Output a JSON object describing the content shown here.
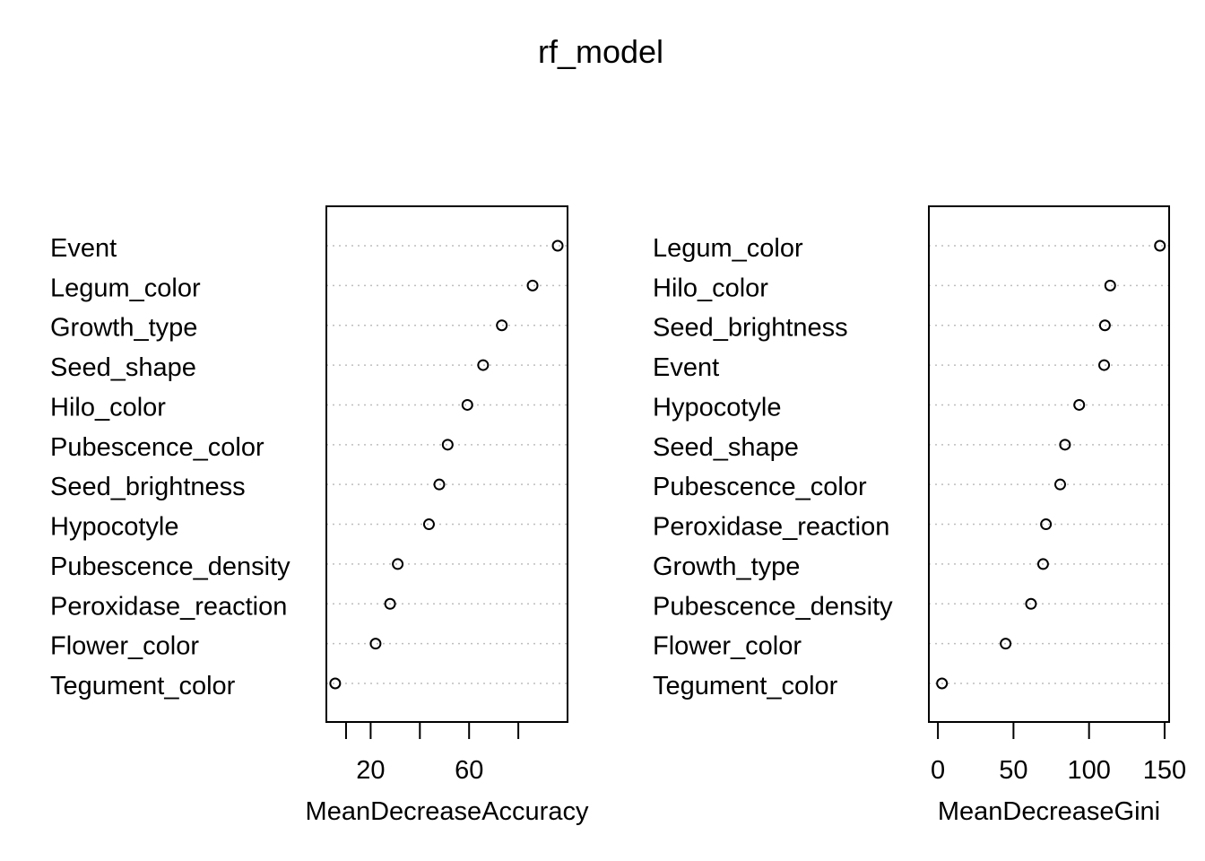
{
  "title": "rf_model",
  "chart_data": [
    {
      "type": "scatter",
      "xlabel": "MeanDecreaseAccuracy",
      "ylabel": "",
      "xlim": [
        2,
        100
      ],
      "xticks": [
        10,
        20,
        40,
        60,
        80
      ],
      "xtick_labels": [
        "20",
        "60"
      ],
      "xtick_label_values": [
        20,
        60
      ],
      "grid": "dotted-horizontal",
      "categories": [
        "Event",
        "Legum_color",
        "Growth_type",
        "Seed_shape",
        "Hilo_color",
        "Pubescence_color",
        "Seed_brightness",
        "Hypocotyle",
        "Pubescence_density",
        "Peroxidase_reaction",
        "Flower_color",
        "Tegument_color"
      ],
      "values": [
        96.0,
        85.8,
        73.3,
        65.7,
        59.3,
        51.3,
        47.9,
        43.7,
        31.0,
        27.9,
        22.0,
        5.6
      ]
    },
    {
      "type": "scatter",
      "xlabel": "MeanDecreaseGini",
      "ylabel": "",
      "xlim": [
        -6,
        153
      ],
      "xticks": [
        0,
        50,
        100,
        150
      ],
      "xtick_labels": [
        "0",
        "50",
        "100",
        "150"
      ],
      "xtick_label_values": [
        0,
        50,
        100,
        150
      ],
      "grid": "dotted-horizontal",
      "categories": [
        "Legum_color",
        "Hilo_color",
        "Seed_brightness",
        "Event",
        "Hypocotyle",
        "Seed_shape",
        "Pubescence_color",
        "Peroxidase_reaction",
        "Growth_type",
        "Pubescence_density",
        "Flower_color",
        "Tegument_color"
      ],
      "values": [
        146.9,
        114.0,
        110.5,
        110.0,
        93.5,
        84.1,
        80.9,
        71.5,
        69.6,
        61.6,
        44.8,
        2.7
      ]
    }
  ]
}
